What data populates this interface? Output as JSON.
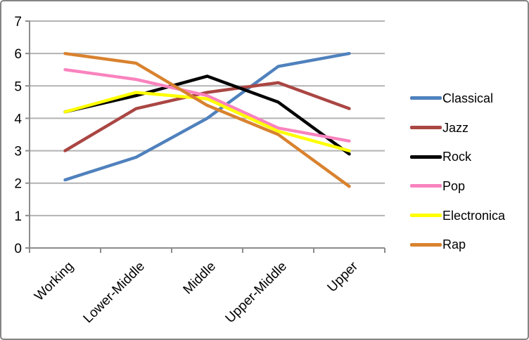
{
  "chart_data": {
    "type": "line",
    "title": "",
    "categories": [
      "Working",
      "Lower-Middle",
      "Middle",
      "Upper-Middle",
      "Upper"
    ],
    "series": [
      {
        "name": "Classical",
        "color": "#4F81BD",
        "values": [
          2.1,
          2.8,
          4.0,
          5.6,
          6.0
        ]
      },
      {
        "name": "Jazz",
        "color": "#AA4643",
        "values": [
          3.0,
          4.3,
          4.8,
          5.1,
          4.3
        ]
      },
      {
        "name": "Rock",
        "color": "#000000",
        "values": [
          4.2,
          4.7,
          5.3,
          4.5,
          2.9
        ]
      },
      {
        "name": "Pop",
        "color": "#F983BE",
        "values": [
          5.5,
          5.2,
          4.7,
          3.7,
          3.3
        ]
      },
      {
        "name": "Electronica",
        "color": "#FFFF00",
        "values": [
          4.2,
          4.8,
          4.6,
          3.6,
          3.0
        ]
      },
      {
        "name": "Rap",
        "color": "#D9822F",
        "values": [
          6.0,
          5.7,
          4.4,
          3.5,
          1.9
        ]
      }
    ],
    "ylim": [
      0,
      7
    ],
    "yticks": [
      0,
      1,
      2,
      3,
      4,
      5,
      6,
      7
    ],
    "grid": true,
    "legend_position": "right"
  },
  "colors": {
    "axis": "#8c8c8c",
    "gridline": "#b3b3b3",
    "frame_border": "#848484",
    "text": "#000000",
    "background": "#ffffff"
  }
}
